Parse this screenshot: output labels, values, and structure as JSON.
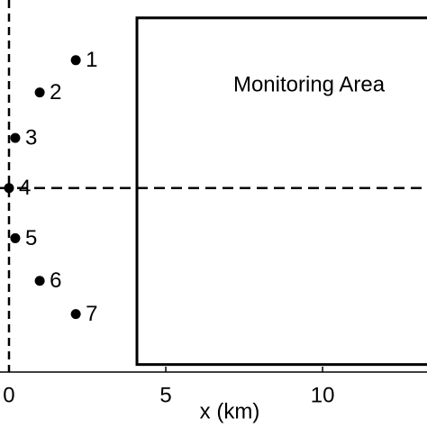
{
  "chart_data": {
    "type": "scatter",
    "x_label": "x (km)",
    "xlim": [
      -0.287,
      13.33
    ],
    "xticks": [
      0,
      5,
      10
    ],
    "ylim": [
      -5.87,
      6.0
    ],
    "series": [
      {
        "color": "#000000",
        "labels": [
          "1",
          "2",
          "3",
          "4",
          "5",
          "6",
          "7"
        ],
        "x": [
          2.13,
          0.98,
          0.2,
          0,
          0.2,
          0.98,
          2.13
        ],
        "values": [
          4.08,
          3.05,
          1.6,
          0,
          -1.6,
          -2.96,
          -4.02
        ]
      }
    ],
    "reference_lines": {
      "x": [
        0
      ],
      "y": [
        0
      ]
    },
    "region": {
      "label": "Monitoring Area",
      "x": [
        4.08,
        14
      ],
      "y": [
        -5.63,
        5.43
      ]
    }
  }
}
